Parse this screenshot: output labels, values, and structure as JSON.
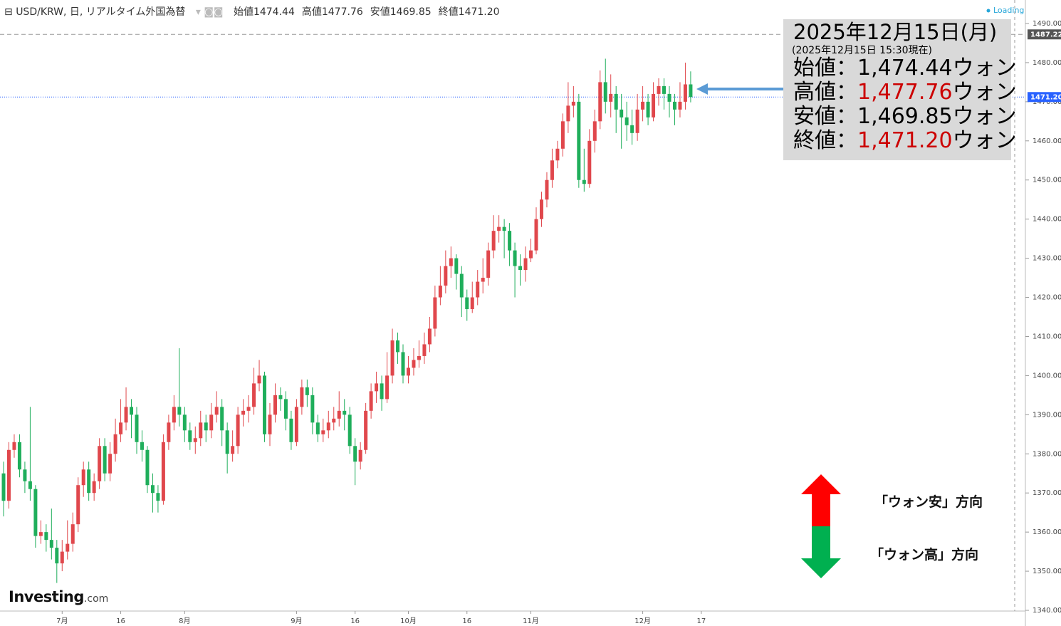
{
  "header": {
    "symbol": "USD/KRW, 日, リアルタイム外国為替",
    "ohlc": [
      {
        "label": "始値",
        "value": "1474.44"
      },
      {
        "label": "高値",
        "value": "1477.76"
      },
      {
        "label": "安値",
        "value": "1469.85"
      },
      {
        "label": "終値",
        "value": "1471.20"
      }
    ],
    "loading": "Loading"
  },
  "chart_data": {
    "type": "candlestick",
    "categories": [
      null,
      null,
      null,
      null,
      null,
      null,
      null,
      null,
      null,
      null,
      null,
      "7月",
      null,
      null,
      null,
      null,
      null,
      null,
      null,
      null,
      null,
      null,
      "16",
      null,
      null,
      null,
      null,
      null,
      null,
      null,
      null,
      null,
      null,
      null,
      "8月",
      null,
      null,
      null,
      null,
      null,
      null,
      null,
      null,
      null,
      null,
      null,
      null,
      null,
      null,
      null,
      null,
      null,
      null,
      null,
      null,
      "9月",
      null,
      null,
      null,
      null,
      null,
      null,
      null,
      null,
      null,
      null,
      "16",
      null,
      null,
      null,
      null,
      null,
      null,
      null,
      null,
      null,
      "10月",
      null,
      null,
      null,
      null,
      null,
      null,
      null,
      null,
      null,
      null,
      "16",
      null,
      null,
      null,
      null,
      null,
      null,
      null,
      null,
      null,
      null,
      null,
      "11月",
      null,
      null,
      null,
      null,
      null,
      null,
      null,
      null,
      null,
      null,
      null,
      null,
      null,
      null,
      null,
      null,
      null,
      null,
      null,
      null,
      "12月",
      null,
      null,
      null,
      null,
      null,
      null,
      null,
      null,
      null,
      null,
      "17"
    ],
    "series": [
      {
        "up_color": "#e0474c",
        "down_color": "#1fae5b",
        "open": [
          1375,
          1368,
          1381,
          1383,
          1376,
          1373,
          1371,
          1359,
          1360,
          1358,
          1356,
          1352,
          1355,
          1357,
          1362,
          1372,
          1376,
          1370,
          1373,
          1382,
          1375,
          1380,
          1385,
          1388,
          1392,
          1390,
          1383,
          1381,
          1372,
          1370,
          1368,
          1383,
          1388,
          1392,
          1390,
          1386,
          1383,
          1384,
          1388,
          1386,
          1390,
          1392,
          1386,
          1380,
          1382,
          1390,
          1391,
          1392,
          1398,
          1400,
          1385,
          1390,
          1395,
          1394,
          1389,
          1383,
          1392,
          1397,
          1395,
          1388,
          1385,
          1386,
          1388,
          1389,
          1391,
          1390,
          1382,
          1378,
          1381,
          1391,
          1396,
          1398,
          1394,
          1400,
          1409,
          1406,
          1400,
          1402,
          1404,
          1405,
          1408,
          1412,
          1420,
          1423,
          1428,
          1430,
          1426,
          1420,
          1417,
          1420,
          1424,
          1425,
          1432,
          1437,
          1438,
          1437,
          1432,
          1428,
          1427,
          1430,
          1432,
          1440,
          1445,
          1450,
          1455,
          1458,
          1465,
          1469,
          1470,
          1450,
          1449,
          1460,
          1465,
          1475,
          1470,
          1472,
          1468,
          1466,
          1464,
          1462,
          1468,
          1470,
          1466,
          1472,
          1474,
          1472,
          1470,
          1468,
          1470,
          1474.44,
          null,
          null
        ],
        "high": [
          1378,
          1383,
          1385,
          1385,
          1378,
          1392,
          1372,
          1363,
          1362,
          1366,
          1358,
          1358,
          1363,
          1365,
          1374,
          1378,
          1378,
          1375,
          1384,
          1384,
          1383,
          1389,
          1394,
          1397,
          1394,
          1392,
          1386,
          1382,
          1375,
          1372,
          1385,
          1390,
          1395,
          1407,
          1392,
          1388,
          1387,
          1391,
          1390,
          1393,
          1396,
          1394,
          1388,
          1386,
          1392,
          1394,
          1395,
          1402,
          1404,
          1401,
          1393,
          1398,
          1397,
          1396,
          1391,
          1394,
          1399,
          1399,
          1397,
          1390,
          1389,
          1391,
          1392,
          1396,
          1394,
          1392,
          1384,
          1383,
          1393,
          1398,
          1401,
          1400,
          1406,
          1412,
          1411,
          1408,
          1405,
          1407,
          1409,
          1411,
          1415,
          1423,
          1428,
          1432,
          1433,
          1431,
          1428,
          1422,
          1424,
          1427,
          1430,
          1434,
          1441,
          1441,
          1440,
          1439,
          1434,
          1431,
          1433,
          1435,
          1443,
          1447,
          1452,
          1458,
          1460,
          1467,
          1475,
          1474,
          1472,
          1458,
          1463,
          1468,
          1478,
          1481,
          1477,
          1474,
          1472,
          1470,
          1468,
          1472,
          1474,
          1472,
          1475,
          1476,
          1476,
          1474,
          1472,
          1475,
          1480,
          1477.76,
          null,
          null
        ],
        "low": [
          1364,
          1366,
          1379,
          1374,
          1370,
          1368,
          1356,
          1357,
          1355,
          1353,
          1347,
          1350,
          1353,
          1355,
          1360,
          1369,
          1368,
          1368,
          1371,
          1373,
          1373,
          1378,
          1383,
          1386,
          1384,
          1380,
          1378,
          1370,
          1365,
          1365,
          1367,
          1381,
          1386,
          1387,
          1383,
          1381,
          1380,
          1382,
          1383,
          1384,
          1388,
          1382,
          1375,
          1378,
          1380,
          1387,
          1388,
          1390,
          1396,
          1383,
          1382,
          1388,
          1391,
          1386,
          1381,
          1382,
          1390,
          1392,
          1385,
          1383,
          1383,
          1384,
          1386,
          1387,
          1386,
          1380,
          1372,
          1376,
          1380,
          1389,
          1393,
          1391,
          1393,
          1398,
          1403,
          1398,
          1398,
          1400,
          1402,
          1403,
          1406,
          1410,
          1418,
          1421,
          1425,
          1422,
          1415,
          1414,
          1416,
          1418,
          1421,
          1423,
          1430,
          1434,
          1430,
          1428,
          1420,
          1423,
          1424,
          1429,
          1431,
          1438,
          1443,
          1448,
          1453,
          1456,
          1462,
          1466,
          1448,
          1447,
          1448,
          1457,
          1463,
          1467,
          1466,
          1462,
          1458,
          1460,
          1459,
          1460,
          1465,
          1464,
          1465,
          1469,
          1468,
          1466,
          1464,
          1466,
          1468,
          1469.85,
          null,
          null
        ],
        "close": [
          1368,
          1381,
          1383,
          1376,
          1373,
          1371,
          1359,
          1360,
          1358,
          1356,
          1352,
          1355,
          1357,
          1362,
          1372,
          1376,
          1370,
          1373,
          1382,
          1375,
          1380,
          1385,
          1388,
          1392,
          1390,
          1383,
          1381,
          1372,
          1370,
          1368,
          1383,
          1388,
          1392,
          1390,
          1386,
          1383,
          1384,
          1388,
          1386,
          1390,
          1392,
          1386,
          1380,
          1382,
          1390,
          1391,
          1392,
          1398,
          1400,
          1385,
          1390,
          1395,
          1394,
          1389,
          1383,
          1392,
          1397,
          1395,
          1388,
          1385,
          1386,
          1388,
          1389,
          1391,
          1390,
          1382,
          1378,
          1381,
          1391,
          1396,
          1398,
          1394,
          1400,
          1409,
          1406,
          1400,
          1402,
          1404,
          1405,
          1408,
          1412,
          1420,
          1423,
          1428,
          1430,
          1426,
          1420,
          1417,
          1420,
          1424,
          1425,
          1432,
          1437,
          1438,
          1437,
          1432,
          1428,
          1427,
          1430,
          1432,
          1440,
          1445,
          1450,
          1455,
          1458,
          1465,
          1469,
          1470,
          1450,
          1449,
          1460,
          1465,
          1475,
          1470,
          1472,
          1468,
          1466,
          1464,
          1462,
          1468,
          1470,
          1466,
          1472,
          1474,
          1472,
          1470,
          1468,
          1470,
          1474.44,
          1471.2,
          null,
          null
        ]
      }
    ],
    "ylim": [
      1340,
      1490
    ],
    "yticks": [
      {
        "value": 1340,
        "label": "1340.00"
      },
      {
        "value": 1350,
        "label": "1350.00"
      },
      {
        "value": 1360,
        "label": "1360.00"
      },
      {
        "value": 1370,
        "label": "1370.00"
      },
      {
        "value": 1380,
        "label": "1380.00"
      },
      {
        "value": 1390,
        "label": "1390.00"
      },
      {
        "value": 1400,
        "label": "1400.00"
      },
      {
        "value": 1410,
        "label": "1410.00"
      },
      {
        "value": 1420,
        "label": "1420.00"
      },
      {
        "value": 1430,
        "label": "1430.00"
      },
      {
        "value": 1440,
        "label": "1440.00"
      },
      {
        "value": 1450,
        "label": "1450.00"
      },
      {
        "value": 1460,
        "label": "1460.00"
      },
      {
        "value": 1470,
        "label": "1470.00"
      },
      {
        "value": 1480,
        "label": "1480.00"
      },
      {
        "value": 1490,
        "label": "1490.00"
      }
    ],
    "hlines": [
      {
        "value": 1487.22,
        "label": "1487.22",
        "style": "dashed",
        "color": "#999999",
        "label_color": "#555555"
      },
      {
        "value": 1471.2,
        "label": "1471.20",
        "style": "dotted",
        "color": "#2962ff",
        "label_color": "#2962ff"
      }
    ]
  },
  "annotation": {
    "title": "2025年12月15日(月)",
    "subtitle": "(2025年12月15日 15:30現在)",
    "rows": [
      {
        "label": "始値：",
        "value": "1,474.44",
        "unit": "ウォン"
      },
      {
        "label": "高値：",
        "value": "1,477.76",
        "unit": "ウォン",
        "value_color": "#cc0000"
      },
      {
        "label": "安値：",
        "value": "1,469.85",
        "unit": "ウォン"
      },
      {
        "label": "終値：",
        "value": "1,471.20",
        "unit": "ウォン",
        "value_color": "#cc0000"
      }
    ]
  },
  "direction": {
    "up": "「ウォン安」方向",
    "down": "「ウォン高」方向"
  },
  "logo": {
    "brand": "Investing",
    "suffix": ".com"
  }
}
